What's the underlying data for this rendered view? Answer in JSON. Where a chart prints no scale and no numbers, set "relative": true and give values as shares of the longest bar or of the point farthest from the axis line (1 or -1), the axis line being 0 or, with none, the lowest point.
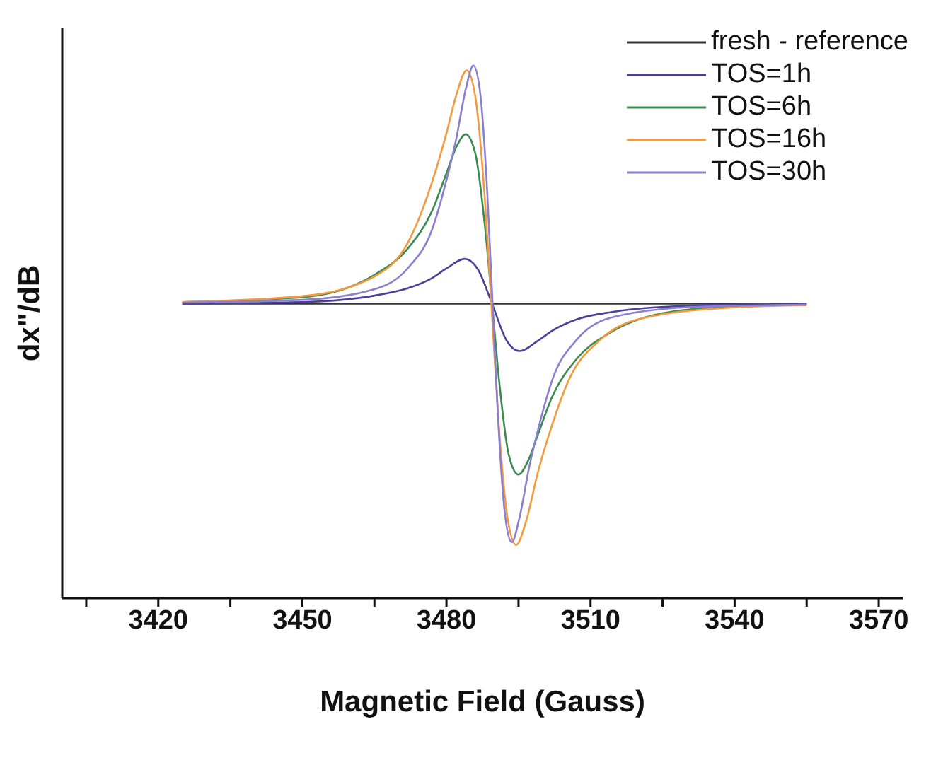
{
  "chart_data": {
    "type": "line",
    "xlabel": "Magnetic Field (Gauss)",
    "ylabel": "dx\"/dB",
    "relative": true,
    "xlim": [
      3400,
      3575
    ],
    "xticks": [
      {
        "value": 3405,
        "label": null
      },
      3420,
      {
        "value": 3435,
        "label": null
      },
      3450,
      {
        "value": 3465,
        "label": null
      },
      3480,
      {
        "value": 3495,
        "label": null
      },
      3510,
      {
        "value": 3525,
        "label": null
      },
      3540,
      {
        "value": 3555,
        "label": null
      },
      3570
    ],
    "legend": "top right",
    "marker": "none",
    "line_style": "solid",
    "series": [
      {
        "name": "fresh - reference",
        "color": "#333333",
        "x": [
          3425,
          3490,
          3555
        ],
        "values": [
          0.553,
          0.553,
          0.553
        ]
      },
      {
        "name": "TOS=1h",
        "color": "#4a3f9a",
        "x": [
          3425,
          3450,
          3465,
          3472,
          3477,
          3480,
          3483.8,
          3486.5,
          3489.5,
          3492.5,
          3495.2,
          3499,
          3502,
          3507,
          3515,
          3530,
          3555
        ],
        "values": [
          0.553,
          0.556,
          0.568,
          0.582,
          0.601,
          0.619,
          0.637,
          0.618,
          0.553,
          0.484,
          0.464,
          0.483,
          0.502,
          0.523,
          0.538,
          0.549,
          0.553
        ]
      },
      {
        "name": "TOS=6h",
        "color": "#3a8a50",
        "x": [
          3425,
          3450,
          3465,
          3472,
          3477,
          3480,
          3482,
          3484,
          3486,
          3488,
          3489.5,
          3491,
          3493,
          3495,
          3497,
          3499,
          3502,
          3507,
          3514,
          3525,
          3540,
          3555
        ],
        "values": [
          0.556,
          0.565,
          0.607,
          0.657,
          0.727,
          0.798,
          0.846,
          0.871,
          0.835,
          0.699,
          0.553,
          0.405,
          0.268,
          0.232,
          0.258,
          0.306,
          0.378,
          0.448,
          0.498,
          0.535,
          0.548,
          0.551
        ]
      },
      {
        "name": "TOS=16h",
        "color": "#f59a3c",
        "x": [
          3425,
          3450,
          3465,
          3472,
          3477,
          3480,
          3482,
          3484.2,
          3486,
          3488,
          3489.35,
          3490.7,
          3492.7,
          3494.5,
          3496.6,
          3499,
          3501.7,
          3505.6,
          3512,
          3521,
          3540,
          3555
        ],
        "values": [
          0.556,
          0.567,
          0.604,
          0.668,
          0.781,
          0.873,
          0.943,
          0.991,
          0.942,
          0.748,
          0.553,
          0.351,
          0.151,
          0.1,
          0.145,
          0.235,
          0.317,
          0.412,
          0.485,
          0.526,
          0.546,
          0.55
        ]
      },
      {
        "name": "TOS=30h",
        "color": "#8a7fd0",
        "x": [
          3425,
          3450,
          3465,
          3472,
          3477,
          3480,
          3482,
          3484,
          3485.6,
          3487,
          3488.5,
          3489.6,
          3490.7,
          3492.2,
          3493.6,
          3495.2,
          3497.2,
          3499.2,
          3502.2,
          3507.2,
          3514,
          3530,
          3555
        ],
        "values": [
          0.555,
          0.56,
          0.58,
          0.62,
          0.692,
          0.785,
          0.861,
          0.955,
          1.0,
          0.95,
          0.761,
          0.553,
          0.345,
          0.156,
          0.105,
          0.151,
          0.245,
          0.321,
          0.414,
          0.486,
          0.526,
          0.546,
          0.551
        ]
      }
    ]
  }
}
